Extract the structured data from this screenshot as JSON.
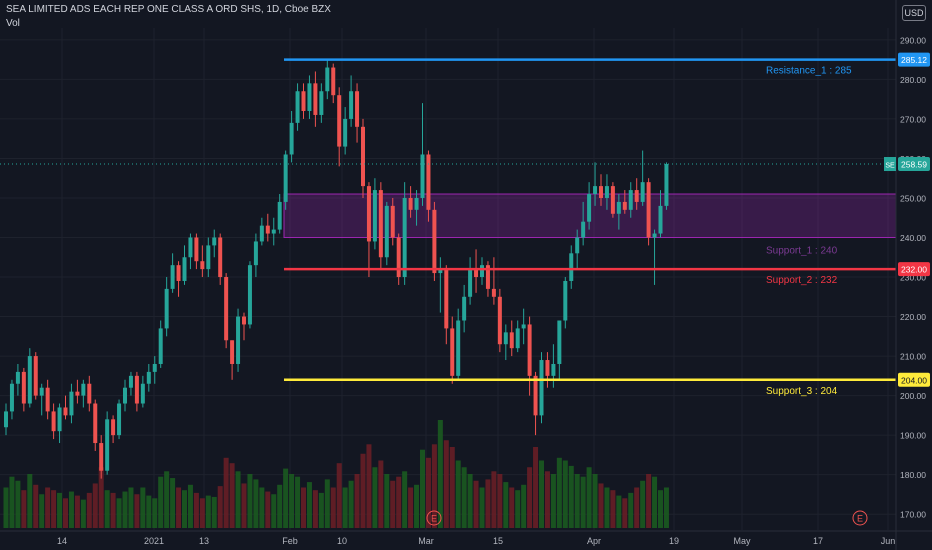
{
  "header": {
    "title": "SEA LIMITED ADS EACH REP ONE CLASS A ORD SHS, 1D, Cboe BZX",
    "vol_label": "Vol",
    "currency": "USD"
  },
  "price_axis": {
    "ticks": [
      "290.00",
      "280.00",
      "270.00",
      "260.00",
      "250.00",
      "240.00",
      "230.00",
      "220.00",
      "210.00",
      "200.00",
      "190.00",
      "180.00",
      "170.00"
    ],
    "last_price_label": "258.59",
    "symbol_tag": "SE"
  },
  "levels": [
    {
      "name": "Resistance_1 : 285",
      "value": 285,
      "axis_label": "285.12",
      "color": "#2196f3"
    },
    {
      "name": "Support_2 : 232",
      "value": 232,
      "axis_label": "232.00",
      "color": "#f23645"
    },
    {
      "name": "Support_3 : 204",
      "value": 204,
      "axis_label": "204.00",
      "color": "#ffeb3b"
    }
  ],
  "zone": {
    "label": "Support_1 : 240",
    "top": 251,
    "bottom": 240,
    "color": "#9c27b0"
  },
  "event_marker": "E",
  "time_axis": [
    "14",
    "2021",
    "13",
    "Feb",
    "10",
    "Mar",
    "15",
    "Apr",
    "19",
    "May",
    "17",
    "Jun"
  ],
  "chart_data": {
    "type": "candlestick",
    "title": "SEA LIMITED ADS EACH REP ONE CLASS A ORD SHS, 1D, Cboe BZX",
    "ylim": [
      166,
      293
    ],
    "candles": [
      {
        "o": 192,
        "h": 198,
        "l": 190,
        "c": 196,
        "v": 0.3
      },
      {
        "o": 196,
        "h": 204,
        "l": 194,
        "c": 203,
        "v": 0.38
      },
      {
        "o": 203,
        "h": 208,
        "l": 200,
        "c": 206,
        "v": 0.35
      },
      {
        "o": 206,
        "h": 207,
        "l": 196,
        "c": 198,
        "v": 0.28
      },
      {
        "o": 198,
        "h": 212,
        "l": 197,
        "c": 210,
        "v": 0.4
      },
      {
        "o": 210,
        "h": 211,
        "l": 199,
        "c": 200,
        "v": 0.32
      },
      {
        "o": 200,
        "h": 203,
        "l": 195,
        "c": 202,
        "v": 0.25
      },
      {
        "o": 202,
        "h": 204,
        "l": 194,
        "c": 196,
        "v": 0.3
      },
      {
        "o": 196,
        "h": 198,
        "l": 189,
        "c": 191,
        "v": 0.28
      },
      {
        "o": 191,
        "h": 198,
        "l": 188,
        "c": 197,
        "v": 0.26
      },
      {
        "o": 197,
        "h": 200,
        "l": 194,
        "c": 195,
        "v": 0.22
      },
      {
        "o": 195,
        "h": 203,
        "l": 193,
        "c": 201,
        "v": 0.27
      },
      {
        "o": 201,
        "h": 204,
        "l": 198,
        "c": 200,
        "v": 0.24
      },
      {
        "o": 200,
        "h": 204,
        "l": 197,
        "c": 203,
        "v": 0.21
      },
      {
        "o": 203,
        "h": 205,
        "l": 196,
        "c": 198,
        "v": 0.26
      },
      {
        "o": 198,
        "h": 199,
        "l": 186,
        "c": 188,
        "v": 0.33
      },
      {
        "o": 188,
        "h": 190,
        "l": 179,
        "c": 181,
        "v": 0.45
      },
      {
        "o": 181,
        "h": 196,
        "l": 180,
        "c": 194,
        "v": 0.28
      },
      {
        "o": 194,
        "h": 195,
        "l": 188,
        "c": 190,
        "v": 0.26
      },
      {
        "o": 190,
        "h": 199,
        "l": 189,
        "c": 198,
        "v": 0.22
      },
      {
        "o": 198,
        "h": 204,
        "l": 196,
        "c": 202,
        "v": 0.27
      },
      {
        "o": 202,
        "h": 206,
        "l": 200,
        "c": 205,
        "v": 0.3
      },
      {
        "o": 205,
        "h": 206,
        "l": 196,
        "c": 198,
        "v": 0.25
      },
      {
        "o": 198,
        "h": 205,
        "l": 197,
        "c": 203,
        "v": 0.3
      },
      {
        "o": 203,
        "h": 208,
        "l": 201,
        "c": 206,
        "v": 0.24
      },
      {
        "o": 206,
        "h": 210,
        "l": 203,
        "c": 208,
        "v": 0.22
      },
      {
        "o": 208,
        "h": 219,
        "l": 207,
        "c": 217,
        "v": 0.38
      },
      {
        "o": 217,
        "h": 230,
        "l": 215,
        "c": 227,
        "v": 0.42
      },
      {
        "o": 227,
        "h": 236,
        "l": 226,
        "c": 233,
        "v": 0.37
      },
      {
        "o": 233,
        "h": 234,
        "l": 225,
        "c": 229,
        "v": 0.3
      },
      {
        "o": 229,
        "h": 238,
        "l": 228,
        "c": 235,
        "v": 0.28
      },
      {
        "o": 235,
        "h": 241,
        "l": 232,
        "c": 240,
        "v": 0.32
      },
      {
        "o": 240,
        "h": 241,
        "l": 232,
        "c": 234,
        "v": 0.26
      },
      {
        "o": 234,
        "h": 238,
        "l": 230,
        "c": 232,
        "v": 0.22
      },
      {
        "o": 232,
        "h": 240,
        "l": 230,
        "c": 238,
        "v": 0.24
      },
      {
        "o": 238,
        "h": 242,
        "l": 235,
        "c": 240,
        "v": 0.23
      },
      {
        "o": 240,
        "h": 241,
        "l": 228,
        "c": 230,
        "v": 0.31
      },
      {
        "o": 230,
        "h": 231,
        "l": 212,
        "c": 214,
        "v": 0.52
      },
      {
        "o": 214,
        "h": 214,
        "l": 204,
        "c": 208,
        "v": 0.48
      },
      {
        "o": 208,
        "h": 222,
        "l": 206,
        "c": 220,
        "v": 0.42
      },
      {
        "o": 220,
        "h": 221,
        "l": 214,
        "c": 218,
        "v": 0.33
      },
      {
        "o": 218,
        "h": 234,
        "l": 217,
        "c": 233,
        "v": 0.4
      },
      {
        "o": 233,
        "h": 241,
        "l": 230,
        "c": 239,
        "v": 0.36
      },
      {
        "o": 239,
        "h": 245,
        "l": 238,
        "c": 243,
        "v": 0.3
      },
      {
        "o": 243,
        "h": 246,
        "l": 239,
        "c": 241,
        "v": 0.27
      },
      {
        "o": 241,
        "h": 245,
        "l": 238,
        "c": 242,
        "v": 0.25
      },
      {
        "o": 242,
        "h": 251,
        "l": 241,
        "c": 249,
        "v": 0.32
      },
      {
        "o": 249,
        "h": 262,
        "l": 247,
        "c": 261,
        "v": 0.44
      },
      {
        "o": 261,
        "h": 272,
        "l": 259,
        "c": 269,
        "v": 0.4
      },
      {
        "o": 269,
        "h": 279,
        "l": 267,
        "c": 277,
        "v": 0.38
      },
      {
        "o": 277,
        "h": 279,
        "l": 270,
        "c": 272,
        "v": 0.3
      },
      {
        "o": 272,
        "h": 281,
        "l": 270,
        "c": 279,
        "v": 0.34
      },
      {
        "o": 279,
        "h": 282,
        "l": 268,
        "c": 271,
        "v": 0.28
      },
      {
        "o": 271,
        "h": 279,
        "l": 269,
        "c": 277,
        "v": 0.26
      },
      {
        "o": 277,
        "h": 285,
        "l": 275,
        "c": 283,
        "v": 0.36
      },
      {
        "o": 283,
        "h": 284,
        "l": 274,
        "c": 276,
        "v": 0.3
      },
      {
        "o": 276,
        "h": 278,
        "l": 258,
        "c": 263,
        "v": 0.48
      },
      {
        "o": 263,
        "h": 273,
        "l": 261,
        "c": 270,
        "v": 0.3
      },
      {
        "o": 270,
        "h": 281,
        "l": 268,
        "c": 277,
        "v": 0.35
      },
      {
        "o": 277,
        "h": 279,
        "l": 264,
        "c": 268,
        "v": 0.4
      },
      {
        "o": 268,
        "h": 270,
        "l": 250,
        "c": 253,
        "v": 0.55
      },
      {
        "o": 253,
        "h": 254,
        "l": 230,
        "c": 239,
        "v": 0.62
      },
      {
        "o": 239,
        "h": 255,
        "l": 237,
        "c": 252,
        "v": 0.45
      },
      {
        "o": 252,
        "h": 254,
        "l": 232,
        "c": 235,
        "v": 0.5
      },
      {
        "o": 235,
        "h": 249,
        "l": 233,
        "c": 248,
        "v": 0.4
      },
      {
        "o": 248,
        "h": 250,
        "l": 238,
        "c": 240,
        "v": 0.35
      },
      {
        "o": 240,
        "h": 241,
        "l": 228,
        "c": 230,
        "v": 0.38
      },
      {
        "o": 230,
        "h": 254,
        "l": 228,
        "c": 250,
        "v": 0.42
      },
      {
        "o": 250,
        "h": 253,
        "l": 245,
        "c": 247,
        "v": 0.3
      },
      {
        "o": 247,
        "h": 252,
        "l": 243,
        "c": 250,
        "v": 0.32
      },
      {
        "o": 250,
        "h": 274,
        "l": 248,
        "c": 261,
        "v": 0.58
      },
      {
        "o": 261,
        "h": 262,
        "l": 244,
        "c": 247,
        "v": 0.52
      },
      {
        "o": 247,
        "h": 249,
        "l": 229,
        "c": 231,
        "v": 0.62
      },
      {
        "o": 231,
        "h": 235,
        "l": 221,
        "c": 232,
        "v": 0.8
      },
      {
        "o": 232,
        "h": 233,
        "l": 213,
        "c": 217,
        "v": 0.65
      },
      {
        "o": 217,
        "h": 220,
        "l": 203,
        "c": 205,
        "v": 0.6
      },
      {
        "o": 205,
        "h": 222,
        "l": 204,
        "c": 219,
        "v": 0.5
      },
      {
        "o": 219,
        "h": 228,
        "l": 216,
        "c": 225,
        "v": 0.45
      },
      {
        "o": 225,
        "h": 235,
        "l": 223,
        "c": 232,
        "v": 0.4
      },
      {
        "o": 232,
        "h": 237,
        "l": 226,
        "c": 230,
        "v": 0.35
      },
      {
        "o": 230,
        "h": 235,
        "l": 228,
        "c": 233,
        "v": 0.3
      },
      {
        "o": 233,
        "h": 234,
        "l": 225,
        "c": 227,
        "v": 0.36
      },
      {
        "o": 227,
        "h": 235,
        "l": 223,
        "c": 225,
        "v": 0.42
      },
      {
        "o": 225,
        "h": 227,
        "l": 211,
        "c": 213,
        "v": 0.4
      },
      {
        "o": 213,
        "h": 218,
        "l": 209,
        "c": 216,
        "v": 0.34
      },
      {
        "o": 216,
        "h": 219,
        "l": 210,
        "c": 212,
        "v": 0.3
      },
      {
        "o": 212,
        "h": 219,
        "l": 211,
        "c": 217,
        "v": 0.28
      },
      {
        "o": 217,
        "h": 222,
        "l": 213,
        "c": 218,
        "v": 0.32
      },
      {
        "o": 218,
        "h": 220,
        "l": 200,
        "c": 205,
        "v": 0.45
      },
      {
        "o": 205,
        "h": 206,
        "l": 190,
        "c": 195,
        "v": 0.6
      },
      {
        "o": 195,
        "h": 211,
        "l": 193,
        "c": 209,
        "v": 0.5
      },
      {
        "o": 209,
        "h": 211,
        "l": 202,
        "c": 205,
        "v": 0.42
      },
      {
        "o": 205,
        "h": 213,
        "l": 202,
        "c": 208,
        "v": 0.4
      },
      {
        "o": 208,
        "h": 219,
        "l": 204,
        "c": 219,
        "v": 0.52
      },
      {
        "o": 219,
        "h": 230,
        "l": 217,
        "c": 229,
        "v": 0.5
      },
      {
        "o": 229,
        "h": 238,
        "l": 227,
        "c": 236,
        "v": 0.46
      },
      {
        "o": 236,
        "h": 242,
        "l": 232,
        "c": 240,
        "v": 0.4
      },
      {
        "o": 240,
        "h": 249,
        "l": 238,
        "c": 244,
        "v": 0.38
      },
      {
        "o": 244,
        "h": 254,
        "l": 242,
        "c": 251,
        "v": 0.45
      },
      {
        "o": 251,
        "h": 259,
        "l": 248,
        "c": 253,
        "v": 0.4
      },
      {
        "o": 253,
        "h": 256,
        "l": 248,
        "c": 250,
        "v": 0.33
      },
      {
        "o": 250,
        "h": 256,
        "l": 247,
        "c": 253,
        "v": 0.3
      },
      {
        "o": 253,
        "h": 254,
        "l": 245,
        "c": 246,
        "v": 0.28
      },
      {
        "o": 246,
        "h": 251,
        "l": 242,
        "c": 249,
        "v": 0.24
      },
      {
        "o": 249,
        "h": 252,
        "l": 246,
        "c": 247,
        "v": 0.22
      },
      {
        "o": 247,
        "h": 254,
        "l": 245,
        "c": 252,
        "v": 0.26
      },
      {
        "o": 252,
        "h": 255,
        "l": 247,
        "c": 249,
        "v": 0.3
      },
      {
        "o": 249,
        "h": 262,
        "l": 248,
        "c": 254,
        "v": 0.35
      },
      {
        "o": 254,
        "h": 255,
        "l": 238,
        "c": 240,
        "v": 0.4
      },
      {
        "o": 240,
        "h": 242,
        "l": 228,
        "c": 241,
        "v": 0.38
      },
      {
        "o": 241,
        "h": 252,
        "l": 240,
        "c": 248,
        "v": 0.28
      },
      {
        "o": 248,
        "h": 259,
        "l": 247,
        "c": 258.59,
        "v": 0.3
      }
    ]
  }
}
